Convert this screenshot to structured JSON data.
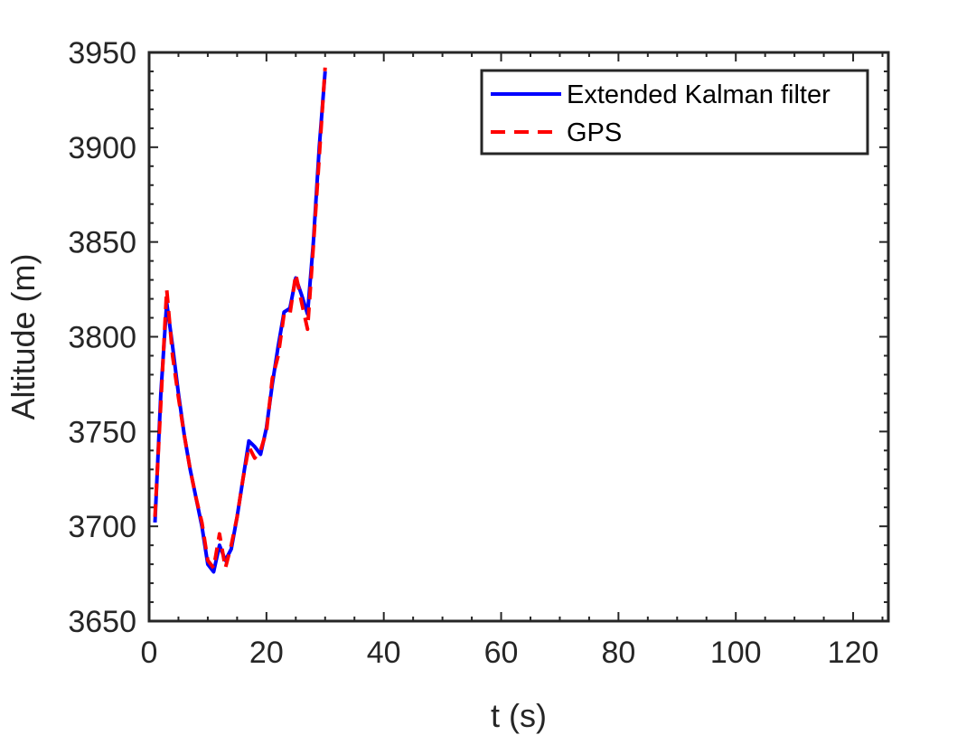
{
  "chart_data": {
    "type": "line",
    "xlabel": "t (s)",
    "ylabel": "Altitude (m)",
    "xlim": [
      0,
      126
    ],
    "ylim": [
      3650,
      3950
    ],
    "xticks": [
      0,
      20,
      40,
      60,
      80,
      100,
      120
    ],
    "xtick_labels": [
      "0",
      "20",
      "40",
      "60",
      "80",
      "100",
      "120"
    ],
    "yticks": [
      3650,
      3700,
      3750,
      3800,
      3850,
      3900,
      3950
    ],
    "ytick_labels": [
      "3650",
      "3700",
      "3750",
      "3800",
      "3850",
      "3900",
      "3950"
    ],
    "grid": false,
    "box": true,
    "legend_position": "top-right",
    "series": [
      {
        "name": "Extended Kalman filter",
        "color": "#0000ff",
        "style": "solid",
        "x": [
          1,
          2,
          3,
          4,
          5,
          6,
          7,
          8,
          9,
          10,
          11,
          12,
          13,
          14,
          15,
          16,
          17,
          18,
          19,
          20,
          21,
          22,
          23,
          24,
          25,
          26,
          27,
          28,
          29,
          30
        ],
        "y": [
          3702,
          3770,
          3818,
          3795,
          3770,
          3748,
          3730,
          3715,
          3700,
          3680,
          3676,
          3690,
          3682,
          3688,
          3705,
          3725,
          3745,
          3742,
          3738,
          3752,
          3775,
          3795,
          3813,
          3815,
          3831,
          3822,
          3812,
          3850,
          3900,
          3940
        ]
      },
      {
        "name": "GPS",
        "color": "#ff0000",
        "style": "dashed",
        "x": [
          1,
          2,
          3,
          4,
          5,
          6,
          7,
          8,
          9,
          10,
          11,
          12,
          13,
          14,
          15,
          16,
          17,
          18,
          19,
          20,
          21,
          22,
          23,
          24,
          25,
          26,
          27,
          28,
          29,
          30
        ],
        "y": [
          3705,
          3765,
          3825,
          3790,
          3768,
          3748,
          3730,
          3715,
          3702,
          3682,
          3678,
          3696,
          3678,
          3690,
          3705,
          3725,
          3742,
          3736,
          3740,
          3750,
          3778,
          3790,
          3812,
          3812,
          3833,
          3818,
          3804,
          3848,
          3895,
          3942
        ]
      }
    ]
  }
}
